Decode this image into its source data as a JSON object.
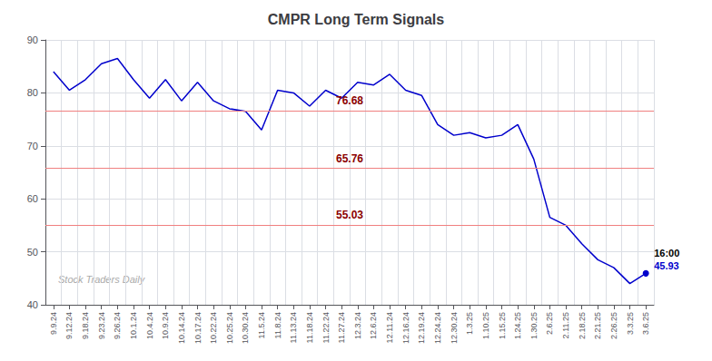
{
  "chart_data": {
    "type": "line",
    "title": "CMPR Long Term Signals",
    "categories": [
      "9.9.24",
      "9.12.24",
      "9.18.24",
      "9.23.24",
      "9.26.24",
      "10.1.24",
      "10.4.24",
      "10.9.24",
      "10.14.24",
      "10.17.24",
      "10.22.24",
      "10.25.24",
      "10.30.24",
      "11.5.24",
      "11.8.24",
      "11.13.24",
      "11.18.24",
      "11.22.24",
      "11.27.24",
      "12.3.24",
      "12.6.24",
      "12.11.24",
      "12.16.24",
      "12.19.24",
      "12.24.24",
      "12.30.24",
      "1.3.25",
      "1.10.25",
      "1.15.25",
      "1.24.25",
      "1.30.25",
      "2.6.25",
      "2.11.25",
      "2.18.25",
      "2.21.25",
      "2.26.25",
      "3.3.25",
      "3.6.25"
    ],
    "values": [
      84.0,
      80.5,
      82.5,
      85.5,
      86.5,
      82.5,
      79.0,
      82.5,
      78.5,
      82.0,
      78.5,
      77.0,
      76.5,
      73.0,
      80.5,
      80.0,
      77.5,
      80.5,
      79.0,
      82.0,
      81.5,
      83.5,
      80.5,
      79.5,
      74.0,
      72.0,
      72.5,
      71.5,
      72.0,
      74.0,
      67.5,
      56.5,
      55.0,
      51.5,
      48.5,
      47.0,
      44.0,
      45.93
    ],
    "color": "#0000cc",
    "ylim": [
      40,
      90
    ],
    "yticks": [
      40,
      50,
      60,
      70,
      80,
      90
    ],
    "grid": true,
    "hlines": [
      {
        "value": 76.68,
        "label": "76.68",
        "color": "#f08080",
        "label_color": "#8b0000"
      },
      {
        "value": 65.76,
        "label": "65.76",
        "color": "#f08080",
        "label_color": "#8b0000"
      },
      {
        "value": 55.03,
        "label": "55.03",
        "color": "#f08080",
        "label_color": "#8b0000"
      }
    ],
    "annotations": [
      {
        "text": "16:00",
        "x": "3.6.25",
        "y": 45.93,
        "color": "#000000"
      },
      {
        "text": "45.93",
        "x": "3.6.25",
        "y": 45.93,
        "color": "#0000cc"
      },
      {
        "text": "Stock Traders Daily",
        "color": "#aaaaaa"
      }
    ]
  }
}
